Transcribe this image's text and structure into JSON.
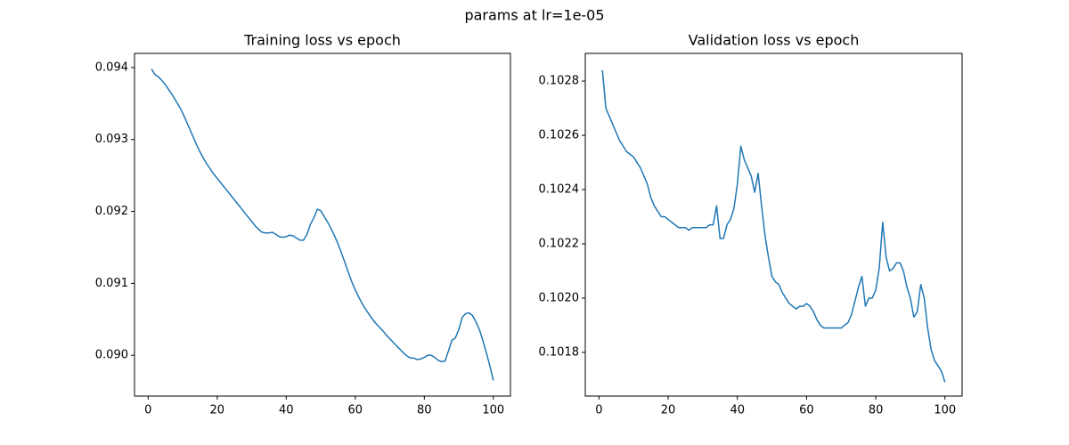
{
  "figure_title": "params at lr=1e-05",
  "chart_data": [
    {
      "type": "line",
      "title": "Training loss vs epoch",
      "color": "#1f77b4",
      "x": [
        1,
        2,
        3,
        4,
        5,
        6,
        7,
        8,
        9,
        10,
        11,
        12,
        13,
        14,
        15,
        16,
        17,
        18,
        19,
        20,
        21,
        22,
        23,
        24,
        25,
        26,
        27,
        28,
        29,
        30,
        31,
        32,
        33,
        34,
        35,
        36,
        37,
        38,
        39,
        40,
        41,
        42,
        43,
        44,
        45,
        46,
        47,
        48,
        49,
        50,
        51,
        52,
        53,
        54,
        55,
        56,
        57,
        58,
        59,
        60,
        61,
        62,
        63,
        64,
        65,
        66,
        67,
        68,
        69,
        70,
        71,
        72,
        73,
        74,
        75,
        76,
        77,
        78,
        79,
        80,
        81,
        82,
        83,
        84,
        85,
        86,
        87,
        88,
        89,
        90,
        91,
        92,
        93,
        94,
        95,
        96,
        97,
        98,
        99,
        100
      ],
      "values": [
        0.09398,
        0.0939,
        0.09387,
        0.09382,
        0.09376,
        0.09369,
        0.09362,
        0.09354,
        0.09346,
        0.09337,
        0.09326,
        0.09315,
        0.09304,
        0.09293,
        0.09283,
        0.09274,
        0.09266,
        0.09259,
        0.09252,
        0.09246,
        0.0924,
        0.09234,
        0.09228,
        0.09222,
        0.09216,
        0.0921,
        0.09204,
        0.09198,
        0.09192,
        0.09186,
        0.0918,
        0.09175,
        0.09171,
        0.0917,
        0.0917,
        0.09171,
        0.09168,
        0.09165,
        0.09164,
        0.09165,
        0.09167,
        0.09166,
        0.09163,
        0.0916,
        0.0916,
        0.09168,
        0.09182,
        0.09191,
        0.09203,
        0.09201,
        0.09193,
        0.09185,
        0.09176,
        0.09166,
        0.09155,
        0.09142,
        0.09129,
        0.09115,
        0.09102,
        0.09091,
        0.09081,
        0.09072,
        0.09064,
        0.09057,
        0.0905,
        0.09044,
        0.09039,
        0.09034,
        0.09028,
        0.09023,
        0.09018,
        0.09013,
        0.09008,
        0.09003,
        0.08999,
        0.08996,
        0.08996,
        0.08994,
        0.08995,
        0.08997,
        0.09,
        0.09,
        0.08997,
        0.08993,
        0.08991,
        0.08992,
        0.09006,
        0.09021,
        0.09024,
        0.09036,
        0.09053,
        0.09058,
        0.09059,
        0.09055,
        0.09046,
        0.09035,
        0.0902,
        0.09003,
        0.08985,
        0.08965
      ],
      "xlim": [
        -3.95,
        104.95
      ],
      "xticks": [
        0,
        20,
        40,
        60,
        80,
        100
      ],
      "ylim": [
        0.089433,
        0.094197
      ],
      "yticks": [
        {
          "value": 0.09,
          "label": "0.090"
        },
        0.091,
        0.092,
        0.093,
        0.094
      ]
    },
    {
      "type": "line",
      "title": "Validation loss vs epoch",
      "color": "#1f77b4",
      "x": [
        1,
        2,
        3,
        4,
        5,
        6,
        7,
        8,
        9,
        10,
        11,
        12,
        13,
        14,
        15,
        16,
        17,
        18,
        19,
        20,
        21,
        22,
        23,
        24,
        25,
        26,
        27,
        28,
        29,
        30,
        31,
        32,
        33,
        34,
        35,
        36,
        37,
        38,
        39,
        40,
        41,
        42,
        43,
        44,
        45,
        46,
        47,
        48,
        49,
        50,
        51,
        52,
        53,
        54,
        55,
        56,
        57,
        58,
        59,
        60,
        61,
        62,
        63,
        64,
        65,
        66,
        67,
        68,
        69,
        70,
        71,
        72,
        73,
        74,
        75,
        76,
        77,
        78,
        79,
        80,
        81,
        82,
        83,
        84,
        85,
        86,
        87,
        88,
        89,
        90,
        91,
        92,
        93,
        94,
        95,
        96,
        97,
        98,
        99,
        100
      ],
      "values": [
        0.10284,
        0.1027,
        0.10267,
        0.10264,
        0.10261,
        0.10258,
        0.10256,
        0.10254,
        0.10253,
        0.10252,
        0.1025,
        0.10248,
        0.10245,
        0.10242,
        0.10237,
        0.10234,
        0.10232,
        0.1023,
        0.1023,
        0.10229,
        0.10228,
        0.10227,
        0.10226,
        0.10226,
        0.10226,
        0.10225,
        0.10226,
        0.10226,
        0.10226,
        0.10226,
        0.10226,
        0.10227,
        0.10227,
        0.10234,
        0.10222,
        0.10222,
        0.10227,
        0.10229,
        0.10233,
        0.10242,
        0.10256,
        0.10251,
        0.10248,
        0.10245,
        0.10239,
        0.10246,
        0.10234,
        0.10223,
        0.10215,
        0.10208,
        0.10206,
        0.10205,
        0.10202,
        0.102,
        0.10198,
        0.10197,
        0.10196,
        0.10197,
        0.10197,
        0.10198,
        0.10197,
        0.10195,
        0.10192,
        0.1019,
        0.10189,
        0.10189,
        0.10189,
        0.10189,
        0.10189,
        0.10189,
        0.1019,
        0.10191,
        0.10194,
        0.10199,
        0.10204,
        0.10208,
        0.10197,
        0.102,
        0.102,
        0.10203,
        0.10211,
        0.10228,
        0.10215,
        0.1021,
        0.10211,
        0.10213,
        0.10213,
        0.1021,
        0.10204,
        0.102,
        0.10193,
        0.10195,
        0.10205,
        0.102,
        0.10189,
        0.10181,
        0.10177,
        0.10175,
        0.10173,
        0.10169
      ],
      "xlim": [
        -3.95,
        104.95
      ],
      "xticks": [
        0,
        20,
        40,
        60,
        80,
        100
      ],
      "ylim": [
        0.101639,
        0.102902
      ],
      "yticks": [
        0.1018,
        {
          "value": 0.102,
          "label": "0.1020"
        },
        0.1022,
        0.1024,
        0.1026,
        0.1028
      ]
    }
  ]
}
